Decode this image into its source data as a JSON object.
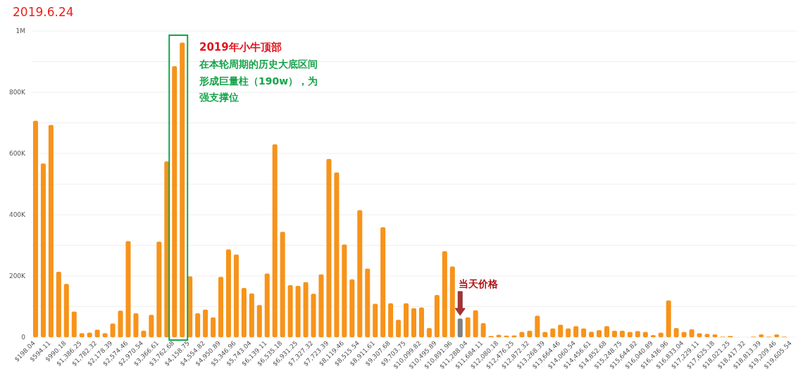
{
  "chart_data": {
    "type": "bar",
    "title": "2019.6.24",
    "categories": [
      "$198.04",
      null,
      "$594.11",
      null,
      "$990.18",
      null,
      "$1,386.25",
      null,
      "$1,782.32",
      null,
      "$2,178.39",
      null,
      "$2,574.46",
      null,
      "$2,970.54",
      null,
      "$3,366.61",
      null,
      "$3,762.68",
      null,
      "$4,158.75",
      null,
      "$4,554.82",
      null,
      "$4,950.89",
      null,
      "$5,346.96",
      null,
      "$5,743.04",
      null,
      "$6,139.11",
      null,
      "$6,535.18",
      null,
      "$6,931.25",
      null,
      "$7,327.32",
      null,
      "$7,723.39",
      null,
      "$8,119.46",
      null,
      "$8,515.54",
      null,
      "$8,911.61",
      null,
      "$9,307.68",
      null,
      "$9,703.75",
      null,
      "$10,099.82",
      null,
      "$10,495.89",
      null,
      "$10,891.96",
      null,
      "$11,288.04",
      null,
      "$11,684.11",
      null,
      "$12,080.18",
      null,
      "$12,476.25",
      null,
      "$12,872.32",
      null,
      "$13,268.39",
      null,
      "$13,664.46",
      null,
      "$14,060.54",
      null,
      "$14,456.61",
      null,
      "$14,852.68",
      null,
      "$15,248.75",
      null,
      "$15,644.82",
      null,
      "$16,040.89",
      null,
      "$16,436.96",
      null,
      "$16,833.04",
      null,
      "$17,229.11",
      null,
      "$17,625.18",
      null,
      "$18,021.25",
      null,
      "$18,417.32",
      null,
      "$18,813.39",
      null,
      "$19,209.46",
      null,
      "$19,605.54"
    ],
    "values": [
      707000,
      567000,
      693000,
      214000,
      174000,
      84000,
      13000,
      15000,
      25000,
      13000,
      45000,
      87000,
      314000,
      78000,
      21000,
      73000,
      312000,
      574000,
      885000,
      962000,
      199000,
      78000,
      90000,
      65000,
      197000,
      287000,
      270000,
      161000,
      143000,
      105000,
      208000,
      630000,
      344000,
      170000,
      168000,
      180000,
      142000,
      205000,
      582000,
      538000,
      303000,
      189000,
      415000,
      224000,
      109000,
      359000,
      111000,
      57000,
      111000,
      95000,
      97000,
      30000,
      138000,
      281000,
      231000,
      61000,
      65000,
      88000,
      46000,
      4000,
      8000,
      5000,
      6000,
      17000,
      21000,
      70000,
      17000,
      29000,
      41000,
      29000,
      36000,
      29000,
      18000,
      23000,
      36000,
      21000,
      21000,
      17000,
      20000,
      17000,
      7000,
      15000,
      120000,
      30000,
      17000,
      26000,
      13000,
      11000,
      9000,
      2000,
      4000,
      0,
      0,
      2000,
      9000,
      2000,
      9000,
      2000,
      0
    ],
    "colors": [
      "#f7931a",
      "#f7931a",
      "#f7931a",
      "#f7931a",
      "#f7931a",
      "#f7931a",
      "#f7931a",
      "#f7931a",
      "#f7931a",
      "#f7931a",
      "#f7931a",
      "#f7931a",
      "#f7931a",
      "#f7931a",
      "#f7931a",
      "#f7931a",
      "#f7931a",
      "#f7931a",
      "#f7931a",
      "#f7931a",
      "#f7931a",
      "#f7931a",
      "#f7931a",
      "#f7931a",
      "#f7931a",
      "#f7931a",
      "#f7931a",
      "#f7931a",
      "#f7931a",
      "#f7931a",
      "#f7931a",
      "#f7931a",
      "#f7931a",
      "#f7931a",
      "#f7931a",
      "#f7931a",
      "#f7931a",
      "#f7931a",
      "#f7931a",
      "#f7931a",
      "#f7931a",
      "#f7931a",
      "#f7931a",
      "#f7931a",
      "#f7931a",
      "#f7931a",
      "#f7931a",
      "#f7931a",
      "#f7931a",
      "#f7931a",
      "#f7931a",
      "#f7931a",
      "#f7931a",
      "#f7931a",
      "#f7931a",
      "#808080",
      "#f7931a",
      "#f7931a",
      "#f7931a",
      "#f7931a",
      "#f7931a",
      "#f7931a",
      "#f7931a",
      "#f7931a",
      "#f7931a",
      "#f7931a",
      "#f7931a",
      "#f7931a",
      "#f7931a",
      "#f7931a",
      "#f7931a",
      "#f7931a",
      "#f7931a",
      "#f7931a",
      "#f7931a",
      "#f7931a",
      "#f7931a",
      "#f7931a",
      "#f7931a",
      "#f7931a",
      "#f7931a",
      "#f7931a",
      "#f7931a",
      "#f7931a",
      "#f7931a",
      "#f7931a",
      "#f7931a",
      "#f7931a",
      "#f7931a",
      "#f7931a",
      "#f7931a",
      "#f7931a",
      "#f7931a",
      "#f7931a",
      "#f7931a",
      "#f7931a",
      "#f7931a",
      "#f7931a",
      "#f7931a"
    ],
    "ylim": [
      0,
      1000000
    ],
    "yticks": [
      {
        "value": 0,
        "label": "0"
      },
      {
        "value": 100000,
        "label": null
      },
      {
        "value": 200000,
        "label": "200K"
      },
      {
        "value": 300000,
        "label": null
      },
      {
        "value": 400000,
        "label": "400K"
      },
      {
        "value": 500000,
        "label": null
      },
      {
        "value": 600000,
        "label": "600K"
      },
      {
        "value": 700000,
        "label": null
      },
      {
        "value": 800000,
        "label": "800K"
      },
      {
        "value": 900000,
        "label": null
      },
      {
        "value": 1000000,
        "label": "1M"
      }
    ],
    "grid": "y",
    "annotations": [
      "2019年小牛顶部",
      "在本轮周期的历史大底区间",
      "形成巨量柱（190w），为",
      "强支撑位",
      "当天价格"
    ]
  }
}
